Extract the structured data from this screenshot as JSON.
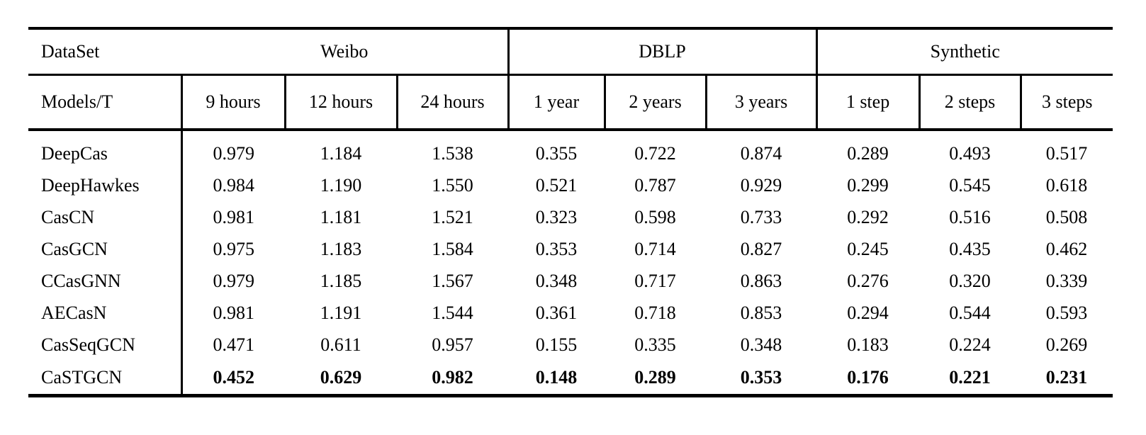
{
  "table": {
    "groups": [
      {
        "label": "DataSet",
        "span": 1
      },
      {
        "label": "Weibo",
        "span": 3
      },
      {
        "label": "DBLP",
        "span": 3
      },
      {
        "label": "Synthetic",
        "span": 3
      }
    ],
    "columns": [
      "Models/T",
      "9 hours",
      "12 hours",
      "24 hours",
      "1 year",
      "2 years",
      "3 years",
      "1 step",
      "2 steps",
      "3 steps"
    ],
    "rows": [
      {
        "model": "DeepCas",
        "bold": false,
        "values": [
          "0.979",
          "1.184",
          "1.538",
          "0.355",
          "0.722",
          "0.874",
          "0.289",
          "0.493",
          "0.517"
        ]
      },
      {
        "model": "DeepHawkes",
        "bold": false,
        "values": [
          "0.984",
          "1.190",
          "1.550",
          "0.521",
          "0.787",
          "0.929",
          "0.299",
          "0.545",
          "0.618"
        ]
      },
      {
        "model": "CasCN",
        "bold": false,
        "values": [
          "0.981",
          "1.181",
          "1.521",
          "0.323",
          "0.598",
          "0.733",
          "0.292",
          "0.516",
          "0.508"
        ]
      },
      {
        "model": "CasGCN",
        "bold": false,
        "values": [
          "0.975",
          "1.183",
          "1.584",
          "0.353",
          "0.714",
          "0.827",
          "0.245",
          "0.435",
          "0.462"
        ]
      },
      {
        "model": "CCasGNN",
        "bold": false,
        "values": [
          "0.979",
          "1.185",
          "1.567",
          "0.348",
          "0.717",
          "0.863",
          "0.276",
          "0.320",
          "0.339"
        ]
      },
      {
        "model": "AECasN",
        "bold": false,
        "values": [
          "0.981",
          "1.191",
          "1.544",
          "0.361",
          "0.718",
          "0.853",
          "0.294",
          "0.544",
          "0.593"
        ]
      },
      {
        "model": "CasSeqGCN",
        "bold": false,
        "values": [
          "0.471",
          "0.611",
          "0.957",
          "0.155",
          "0.335",
          "0.348",
          "0.183",
          "0.224",
          "0.269"
        ]
      },
      {
        "model": "CaSTGCN",
        "bold": true,
        "values": [
          "0.452",
          "0.629",
          "0.982",
          "0.148",
          "0.289",
          "0.353",
          "0.176",
          "0.221",
          "0.231"
        ]
      }
    ]
  },
  "colors": {
    "text": "#000000",
    "border": "#000000",
    "background": "#ffffff"
  }
}
